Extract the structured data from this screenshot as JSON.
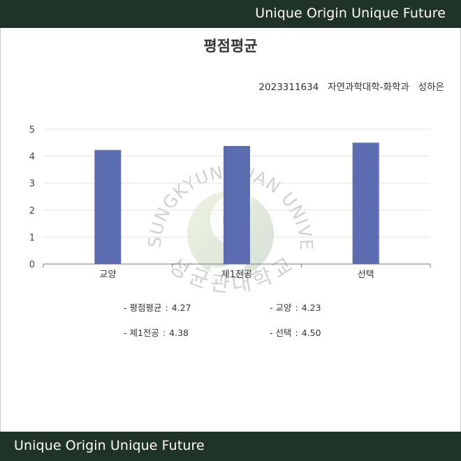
{
  "header": {
    "slogan": "Unique Origin Unique Future"
  },
  "footer": {
    "slogan": "Unique Origin Unique Future"
  },
  "report": {
    "title": "평점평균",
    "student_id": "2023311634",
    "department": "자연과학대학-화학과",
    "name": "성하은"
  },
  "watermark": {
    "english": "SUNGKYUNKWAN UNIVERSITY",
    "korean": "성균관대학교"
  },
  "legend": [
    {
      "label": "- 평점평균",
      "value": "4.27"
    },
    {
      "label": "- 교양",
      "value": "4.23"
    },
    {
      "label": "- 제1전공",
      "value": "4.38"
    },
    {
      "label": "- 선택",
      "value": "4.50"
    }
  ],
  "chart_data": {
    "type": "bar",
    "categories": [
      "교양",
      "제1전공",
      "선택"
    ],
    "series": [
      {
        "values": [
          4.23,
          4.38,
          4.5
        ]
      }
    ],
    "ylim": [
      0,
      5
    ],
    "yticks": [
      "0",
      "1",
      "2",
      "3",
      "4",
      "5"
    ],
    "grid": true,
    "bar_color": "#5b6cb0",
    "title": "",
    "xlabel": "",
    "ylabel": ""
  }
}
